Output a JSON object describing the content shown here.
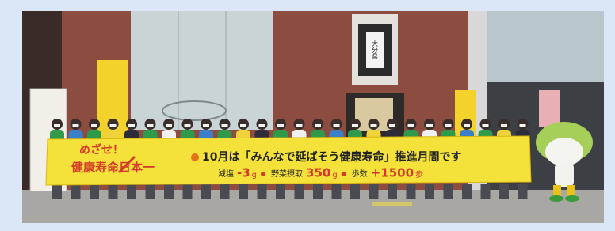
{
  "photo": {
    "building_sign": "大分県",
    "banner": {
      "slogan_line1": "めざせ！",
      "slogan_line2": "健康寿命日本一",
      "headline": "10月は「みんなで延ばそう健康寿命」推進月間です",
      "goals": [
        {
          "label": "減塩",
          "amount": "-3",
          "unit": "g"
        },
        {
          "label": "野菜摂取",
          "amount": "350",
          "unit": "g"
        },
        {
          "label": "歩数",
          "amount": "+1500",
          "unit": "歩"
        }
      ]
    }
  }
}
